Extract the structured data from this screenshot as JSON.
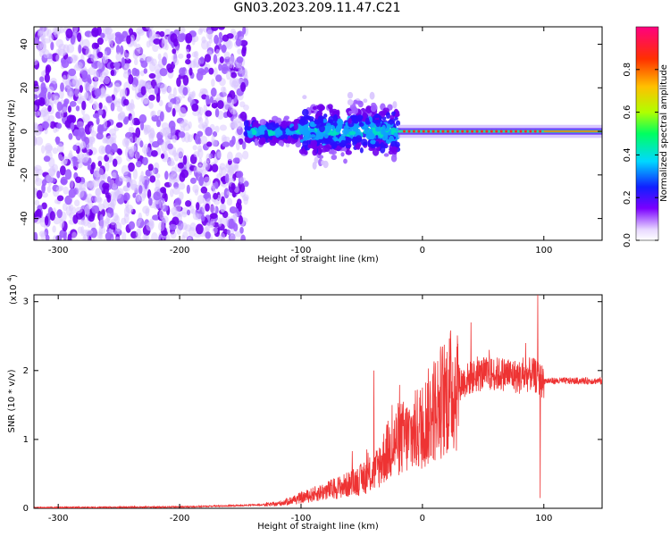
{
  "title": "GN03.2023.209.11.47.C21",
  "chart_data": [
    {
      "type": "heatmap",
      "xlabel": "Height of straight line (km)",
      "ylabel": "Frequency (Hz)",
      "xlim": [
        -320,
        148
      ],
      "ylim": [
        -50,
        48
      ],
      "xticks": [
        -300,
        -200,
        -100,
        0,
        100
      ],
      "yticks": [
        -40,
        -20,
        0,
        20,
        40
      ],
      "colorbar": {
        "label": "Normalized spectral amplitude",
        "range": [
          0.0,
          1.0
        ],
        "ticks": [
          0.0,
          0.2,
          0.4,
          0.6,
          0.8
        ]
      },
      "regions": [
        {
          "x_range": [
            -320,
            -145
          ],
          "freq_range": [
            -50,
            48
          ],
          "amplitude": "scattered 0.1-0.3"
        },
        {
          "x_range": [
            -145,
            -20
          ],
          "freq_range": [
            -10,
            12
          ],
          "amplitude": "0.2-0.5 band around 0 Hz"
        },
        {
          "x_range": [
            -20,
            148
          ],
          "freq_range": [
            -2,
            2
          ],
          "amplitude": "0.6-0.9 line at 0 Hz"
        }
      ]
    },
    {
      "type": "line",
      "xlabel": "Height of straight line (km)",
      "ylabel": "SNR (10 * v/v)",
      "y_scale_label": "(x10",
      "y_scale_exp": "4",
      "xlim": [
        -320,
        148
      ],
      "ylim": [
        0,
        3.1
      ],
      "xticks": [
        -300,
        -200,
        -100,
        0,
        100
      ],
      "yticks": [
        0,
        1,
        2,
        3
      ],
      "color": "#ee3333",
      "envelope": {
        "x": [
          -320,
          -200,
          -150,
          -120,
          -100,
          -80,
          -60,
          -40,
          -30,
          -20,
          -10,
          0,
          10,
          20,
          30,
          40,
          50,
          60,
          70,
          80,
          90,
          95,
          98,
          100,
          110,
          120,
          130,
          148
        ],
        "y": [
          0.01,
          0.02,
          0.04,
          0.06,
          0.15,
          0.25,
          0.35,
          0.5,
          0.8,
          1.0,
          1.05,
          1.2,
          1.45,
          1.65,
          1.8,
          1.9,
          1.95,
          1.95,
          1.95,
          1.9,
          1.95,
          1.9,
          1.85,
          1.85,
          1.85,
          1.85,
          1.85,
          1.85
        ]
      },
      "spikes": [
        {
          "x": -40,
          "y": 2.0
        },
        {
          "x": -25,
          "y": 1.5
        },
        {
          "x": 40,
          "y": 2.7
        },
        {
          "x": 55,
          "y": 2.3
        },
        {
          "x": 85,
          "y": 2.4
        },
        {
          "x": 95,
          "y": 3.1
        },
        {
          "x": 97,
          "y": 0.15
        }
      ]
    }
  ]
}
